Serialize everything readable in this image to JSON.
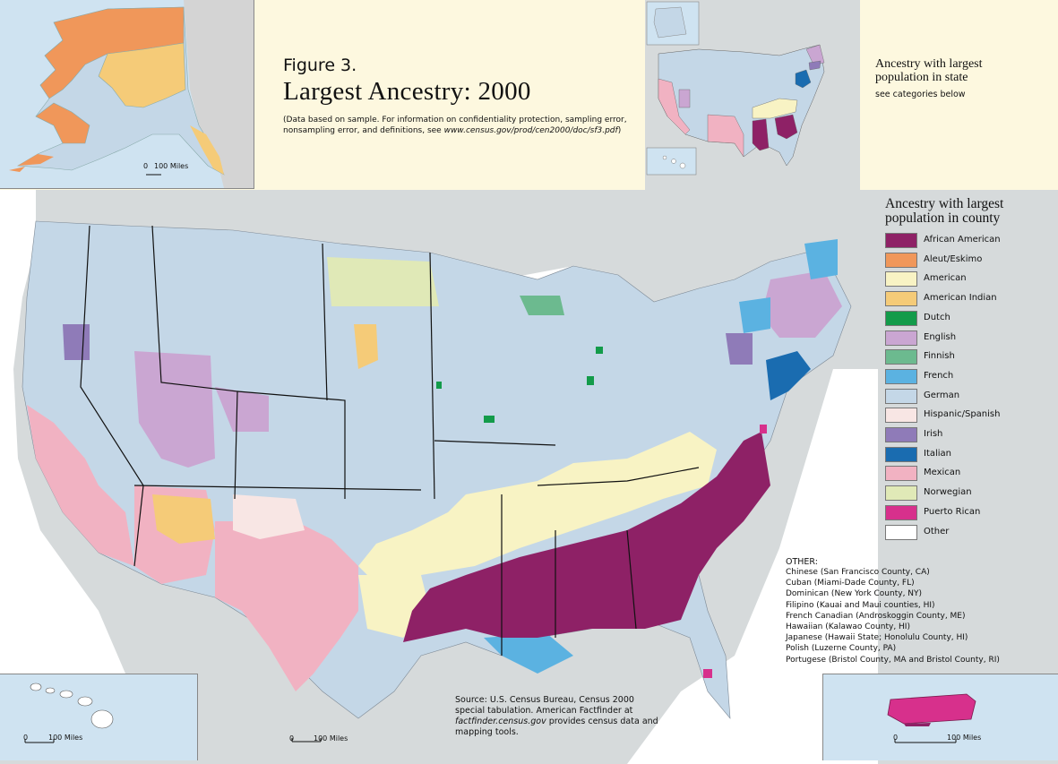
{
  "figure": {
    "number": "Figure 3.",
    "title": "Largest Ancestry: 2000",
    "note_text": "(Data based on sample. For information on confidentiality protection, sampling error, nonsampling error, and definitions, see ",
    "note_url": "www.census.gov/prod/cen2000/doc/sf3.pdf",
    "note_end": ")"
  },
  "state_legend": {
    "title": "Ancestry with largest population in state",
    "subtitle": "see categories below"
  },
  "county_legend": {
    "title": "Ancestry with largest population in county",
    "items": [
      {
        "label": "African American",
        "color": "#8e2166"
      },
      {
        "label": "Aleut/Eskimo",
        "color": "#f0975a"
      },
      {
        "label": "American",
        "color": "#f8f3c4"
      },
      {
        "label": "American Indian",
        "color": "#f5cb78"
      },
      {
        "label": "Dutch",
        "color": "#139b4a"
      },
      {
        "label": "English",
        "color": "#caa6d2"
      },
      {
        "label": "Finnish",
        "color": "#6cba8f"
      },
      {
        "label": "French",
        "color": "#5bb2e1"
      },
      {
        "label": "German",
        "color": "#c4d7e7"
      },
      {
        "label": "Hispanic/Spanish",
        "color": "#f8e6e4"
      },
      {
        "label": "Irish",
        "color": "#8f7bb8"
      },
      {
        "label": "Italian",
        "color": "#1a6cb0"
      },
      {
        "label": "Mexican",
        "color": "#f1b2c2"
      },
      {
        "label": "Norwegian",
        "color": "#e0e9b7"
      },
      {
        "label": "Puerto Rican",
        "color": "#d7308c"
      },
      {
        "label": "Other",
        "color": "#ffffff"
      }
    ]
  },
  "other": {
    "heading": "OTHER:",
    "lines": [
      "Chinese (San Francisco County, CA)",
      "Cuban (Miami-Dade County, FL)",
      "Dominican (New York County, NY)",
      "Filipino (Kauai and Maui counties, HI)",
      "French Canadian (Androskoggin County, ME)",
      "Hawaiian (Kalawao County, HI)",
      "Japanese (Hawaii State; Honolulu County, HI)",
      "Polish (Luzerne County, PA)",
      "Portugese (Bristol County, MA and Bristol County, RI)"
    ]
  },
  "source": {
    "text": "Source: U.S. Census Bureau, Census 2000 special tabulation. American Factfinder at ",
    "url": "factfinder.census.gov",
    "text_end": " provides census data and mapping tools."
  },
  "scales": {
    "alaska": {
      "zero": "0",
      "label": "100 Miles"
    },
    "hawaii": {
      "zero": "0",
      "label": "100 Miles"
    },
    "conus": {
      "zero": "0",
      "label": "100 Miles"
    },
    "puerto_rico": {
      "zero": "0",
      "label": "100 Miles"
    }
  }
}
